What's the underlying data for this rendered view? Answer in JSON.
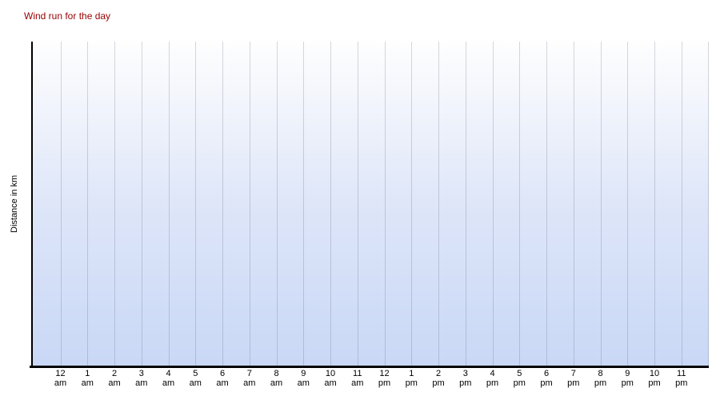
{
  "chart_data": {
    "type": "area",
    "title": "Wind run for the day",
    "xlabel": "",
    "ylabel": "Distance in km",
    "x_tick_labels": [
      {
        "hour": "12",
        "meridiem": "am"
      },
      {
        "hour": "1",
        "meridiem": "am"
      },
      {
        "hour": "2",
        "meridiem": "am"
      },
      {
        "hour": "3",
        "meridiem": "am"
      },
      {
        "hour": "4",
        "meridiem": "am"
      },
      {
        "hour": "5",
        "meridiem": "am"
      },
      {
        "hour": "6",
        "meridiem": "am"
      },
      {
        "hour": "7",
        "meridiem": "am"
      },
      {
        "hour": "8",
        "meridiem": "am"
      },
      {
        "hour": "9",
        "meridiem": "am"
      },
      {
        "hour": "10",
        "meridiem": "am"
      },
      {
        "hour": "11",
        "meridiem": "am"
      },
      {
        "hour": "12",
        "meridiem": "pm"
      },
      {
        "hour": "1",
        "meridiem": "pm"
      },
      {
        "hour": "2",
        "meridiem": "pm"
      },
      {
        "hour": "3",
        "meridiem": "pm"
      },
      {
        "hour": "4",
        "meridiem": "pm"
      },
      {
        "hour": "5",
        "meridiem": "pm"
      },
      {
        "hour": "6",
        "meridiem": "pm"
      },
      {
        "hour": "7",
        "meridiem": "pm"
      },
      {
        "hour": "8",
        "meridiem": "pm"
      },
      {
        "hour": "9",
        "meridiem": "pm"
      },
      {
        "hour": "10",
        "meridiem": "pm"
      },
      {
        "hour": "11",
        "meridiem": "pm"
      }
    ],
    "y_tick_labels": [],
    "series": [],
    "no_data_plotted": true,
    "grid": "vertical-only",
    "legend": "none"
  },
  "colors": {
    "title": "#990000",
    "plot_gradient_top": "#fefefe",
    "plot_gradient_mid": "#dde5f8",
    "plot_gradient_bottom": "#c9d8f6",
    "gridline": "rgba(90,100,125,0.25)",
    "axis": "#000000",
    "tick_text": "#000000"
  }
}
